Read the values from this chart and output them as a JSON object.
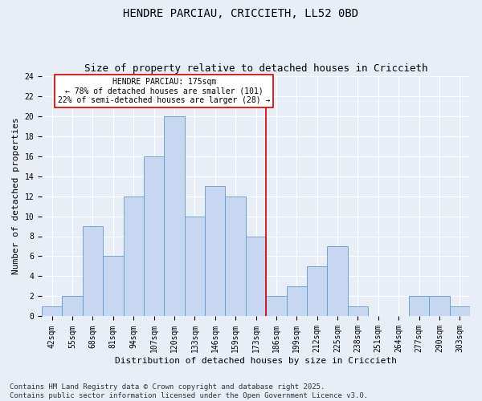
{
  "title": "HENDRE PARCIAU, CRICCIETH, LL52 0BD",
  "subtitle": "Size of property relative to detached houses in Criccieth",
  "xlabel": "Distribution of detached houses by size in Criccieth",
  "ylabel": "Number of detached properties",
  "categories": [
    "42sqm",
    "55sqm",
    "68sqm",
    "81sqm",
    "94sqm",
    "107sqm",
    "120sqm",
    "133sqm",
    "146sqm",
    "159sqm",
    "173sqm",
    "186sqm",
    "199sqm",
    "212sqm",
    "225sqm",
    "238sqm",
    "251sqm",
    "264sqm",
    "277sqm",
    "290sqm",
    "303sqm"
  ],
  "values": [
    1,
    2,
    9,
    6,
    12,
    16,
    20,
    10,
    13,
    12,
    8,
    2,
    3,
    5,
    7,
    1,
    0,
    0,
    2,
    2,
    1
  ],
  "bar_color": "#c5d8f0",
  "bar_edge_color": "#6699cc",
  "background_color": "#e8eef8",
  "grid_color": "#ffffff",
  "vline_x_index": 10.5,
  "vline_color": "#cc0000",
  "annotation_text": "HENDRE PARCIAU: 175sqm\n← 78% of detached houses are smaller (101)\n22% of semi-detached houses are larger (28) →",
  "annotation_box_color": "#ffffff",
  "annotation_box_edge_color": "#cc0000",
  "ylim": [
    0,
    24
  ],
  "yticks": [
    0,
    2,
    4,
    6,
    8,
    10,
    12,
    14,
    16,
    18,
    20,
    22,
    24
  ],
  "footer_text": "Contains HM Land Registry data © Crown copyright and database right 2025.\nContains public sector information licensed under the Open Government Licence v3.0.",
  "title_fontsize": 10,
  "subtitle_fontsize": 9,
  "label_fontsize": 8,
  "tick_fontsize": 7,
  "footer_fontsize": 6.5,
  "annotation_fontsize": 7
}
